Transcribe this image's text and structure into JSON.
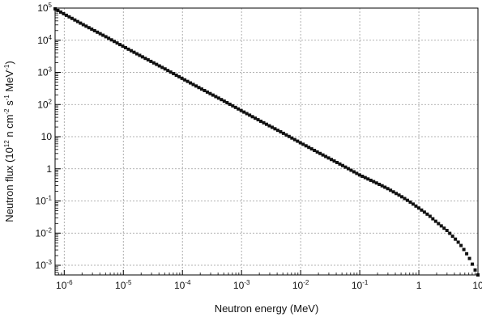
{
  "chart_data": {
    "type": "line",
    "xlabel": "Neutron energy (MeV)",
    "ylabel_parts": [
      {
        "t": "Neutron flux (10",
        "sup": false
      },
      {
        "t": "12",
        "sup": true
      },
      {
        "t": " n cm",
        "sup": false
      },
      {
        "t": "-2",
        "sup": true
      },
      {
        "t": " s",
        "sup": false
      },
      {
        "t": "-1",
        "sup": true
      },
      {
        "t": " MeV",
        "sup": false
      },
      {
        "t": "-1",
        "sup": true
      },
      {
        "t": ")",
        "sup": false
      }
    ],
    "xscale": "log",
    "yscale": "log",
    "xlim": [
      7e-07,
      10
    ],
    "ylim": [
      0.0005,
      100000
    ],
    "grid": true,
    "grid_style": "dotted",
    "marker": "square",
    "color": "#111111",
    "x_ticks": [
      {
        "v": 1e-06,
        "base": "10",
        "exp": "-6"
      },
      {
        "v": 1e-05,
        "base": "10",
        "exp": "-5"
      },
      {
        "v": 0.0001,
        "base": "10",
        "exp": "-4"
      },
      {
        "v": 0.001,
        "base": "10",
        "exp": "-3"
      },
      {
        "v": 0.01,
        "base": "10",
        "exp": "-2"
      },
      {
        "v": 0.1,
        "base": "10",
        "exp": "-1"
      },
      {
        "v": 1,
        "base": "1",
        "exp": ""
      },
      {
        "v": 10,
        "base": "10",
        "exp": ""
      }
    ],
    "y_ticks": [
      {
        "v": 0.001,
        "base": "10",
        "exp": "-3"
      },
      {
        "v": 0.01,
        "base": "10",
        "exp": "-2"
      },
      {
        "v": 0.1,
        "base": "10",
        "exp": "-1"
      },
      {
        "v": 1,
        "base": "1",
        "exp": ""
      },
      {
        "v": 10,
        "base": "10",
        "exp": ""
      },
      {
        "v": 100,
        "base": "10",
        "exp": "2"
      },
      {
        "v": 1000,
        "base": "10",
        "exp": "3"
      },
      {
        "v": 10000,
        "base": "10",
        "exp": "4"
      },
      {
        "v": 100000,
        "base": "10",
        "exp": "5"
      }
    ],
    "series": [
      {
        "x": [
          7e-07,
          1e-06,
          2e-06,
          5e-06,
          1e-05,
          2e-05,
          5e-05,
          0.0001,
          0.0002,
          0.0005,
          0.001,
          0.002,
          0.005,
          0.01,
          0.02,
          0.05,
          0.1,
          0.2,
          0.3,
          0.5,
          0.7,
          1,
          1.5,
          2,
          3,
          4,
          5,
          6,
          7,
          8,
          9,
          10
        ],
        "y": [
          95000,
          65000,
          32000,
          13000,
          6400,
          3200,
          1300,
          640,
          320,
          130,
          64,
          32,
          13,
          6.4,
          3.2,
          1.3,
          0.64,
          0.35,
          0.24,
          0.14,
          0.095,
          0.06,
          0.035,
          0.022,
          0.012,
          0.007,
          0.0045,
          0.0028,
          0.0018,
          0.0011,
          0.0007,
          0.0005
        ]
      }
    ]
  }
}
